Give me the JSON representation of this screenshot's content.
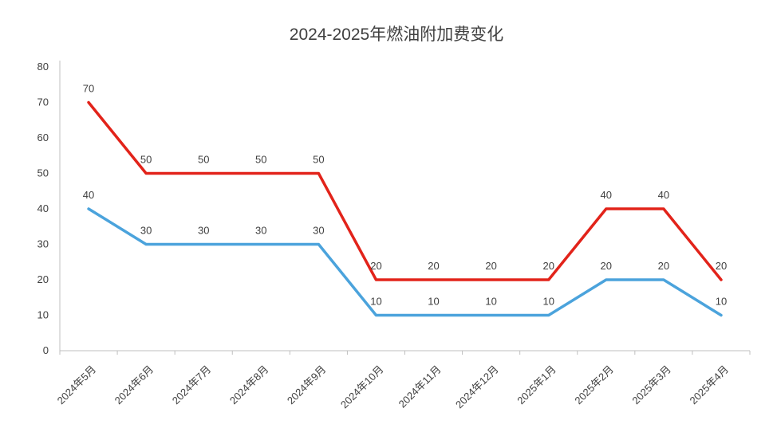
{
  "chart_data": {
    "type": "line",
    "title": "2024-2025年燃油附加费变化",
    "xlabel": "",
    "ylabel": "",
    "categories": [
      "2024年5月",
      "2024年6月",
      "2024年7月",
      "2024年8月",
      "2024年9月",
      "2024年10月",
      "2024年11月",
      "2024年12月",
      "2025年1月",
      "2025年2月",
      "2025年3月",
      "2025年4月"
    ],
    "series": [
      {
        "name": "series-red",
        "color": "#e2231a",
        "values": [
          70,
          50,
          50,
          50,
          50,
          20,
          20,
          20,
          20,
          40,
          40,
          20
        ]
      },
      {
        "name": "series-blue",
        "color": "#4ba3dc",
        "values": [
          40,
          30,
          30,
          30,
          30,
          10,
          10,
          10,
          10,
          20,
          20,
          10
        ]
      }
    ],
    "ylim": [
      0,
      80
    ],
    "ytick_interval": 10,
    "grid": false,
    "legend": "none",
    "data_labels": true,
    "label_color": "#404040",
    "axis_color": "#bfbfbf"
  }
}
